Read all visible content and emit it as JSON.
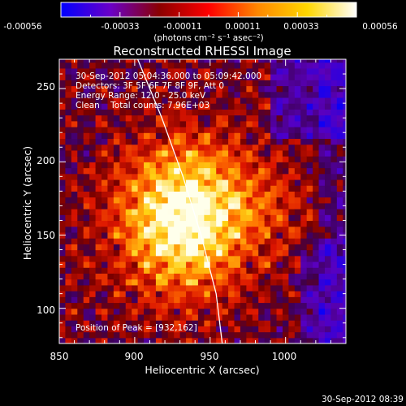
{
  "colors": {
    "background": "#000000",
    "text": "#ffffff",
    "limb_line": "#ffffff",
    "bar_stops": [
      "#0000ff",
      "#6a00c8",
      "#8b0000",
      "#ff0000",
      "#ff8800",
      "#ffd700",
      "#ffffff"
    ]
  },
  "colorbar": {
    "ticks": [
      "-0.00056",
      "-0.00033",
      "-0.00011",
      "0.00011",
      "0.00033",
      "0.00056"
    ],
    "units_label": "(photons cm⁻² s⁻¹ asec⁻²)"
  },
  "annotations": {
    "time_range": "30-Sep-2012 05:04:36.000 to 05:09:42.000",
    "detectors": "Detectors: 3F 5F 6F 7F 8F 9F, Att 0",
    "energy": "Energy Range: 12.0 - 25.0 keV",
    "clean": "Clean    Total counts: 7.96E+03",
    "peak": "Position of Peak = [932,162]"
  },
  "footer": {
    "timestamp": "30-Sep-2012 08:39"
  },
  "chart_data": {
    "type": "heatmap",
    "title": "Reconstructed RHESSI Image",
    "xlabel": "Heliocentric X (arcsec)",
    "ylabel": "Heliocentric Y (arcsec)",
    "xlim": [
      850,
      1040
    ],
    "ylim": [
      76,
      270
    ],
    "x_ticks": [
      850,
      900,
      950,
      1000
    ],
    "y_ticks": [
      100,
      150,
      200,
      250
    ],
    "x_tick_labels": [
      "850",
      "900",
      "950",
      "1000"
    ],
    "y_tick_labels": [
      "100",
      "150",
      "200",
      "250"
    ],
    "color_range": [
      -0.00056,
      0.00056
    ],
    "peak": [
      932,
      162
    ],
    "limb_curve": {
      "x": [
        902,
        918,
        932,
        944,
        954,
        958
      ],
      "y": [
        270,
        230,
        190,
        150,
        110,
        76
      ]
    },
    "grid": false
  }
}
